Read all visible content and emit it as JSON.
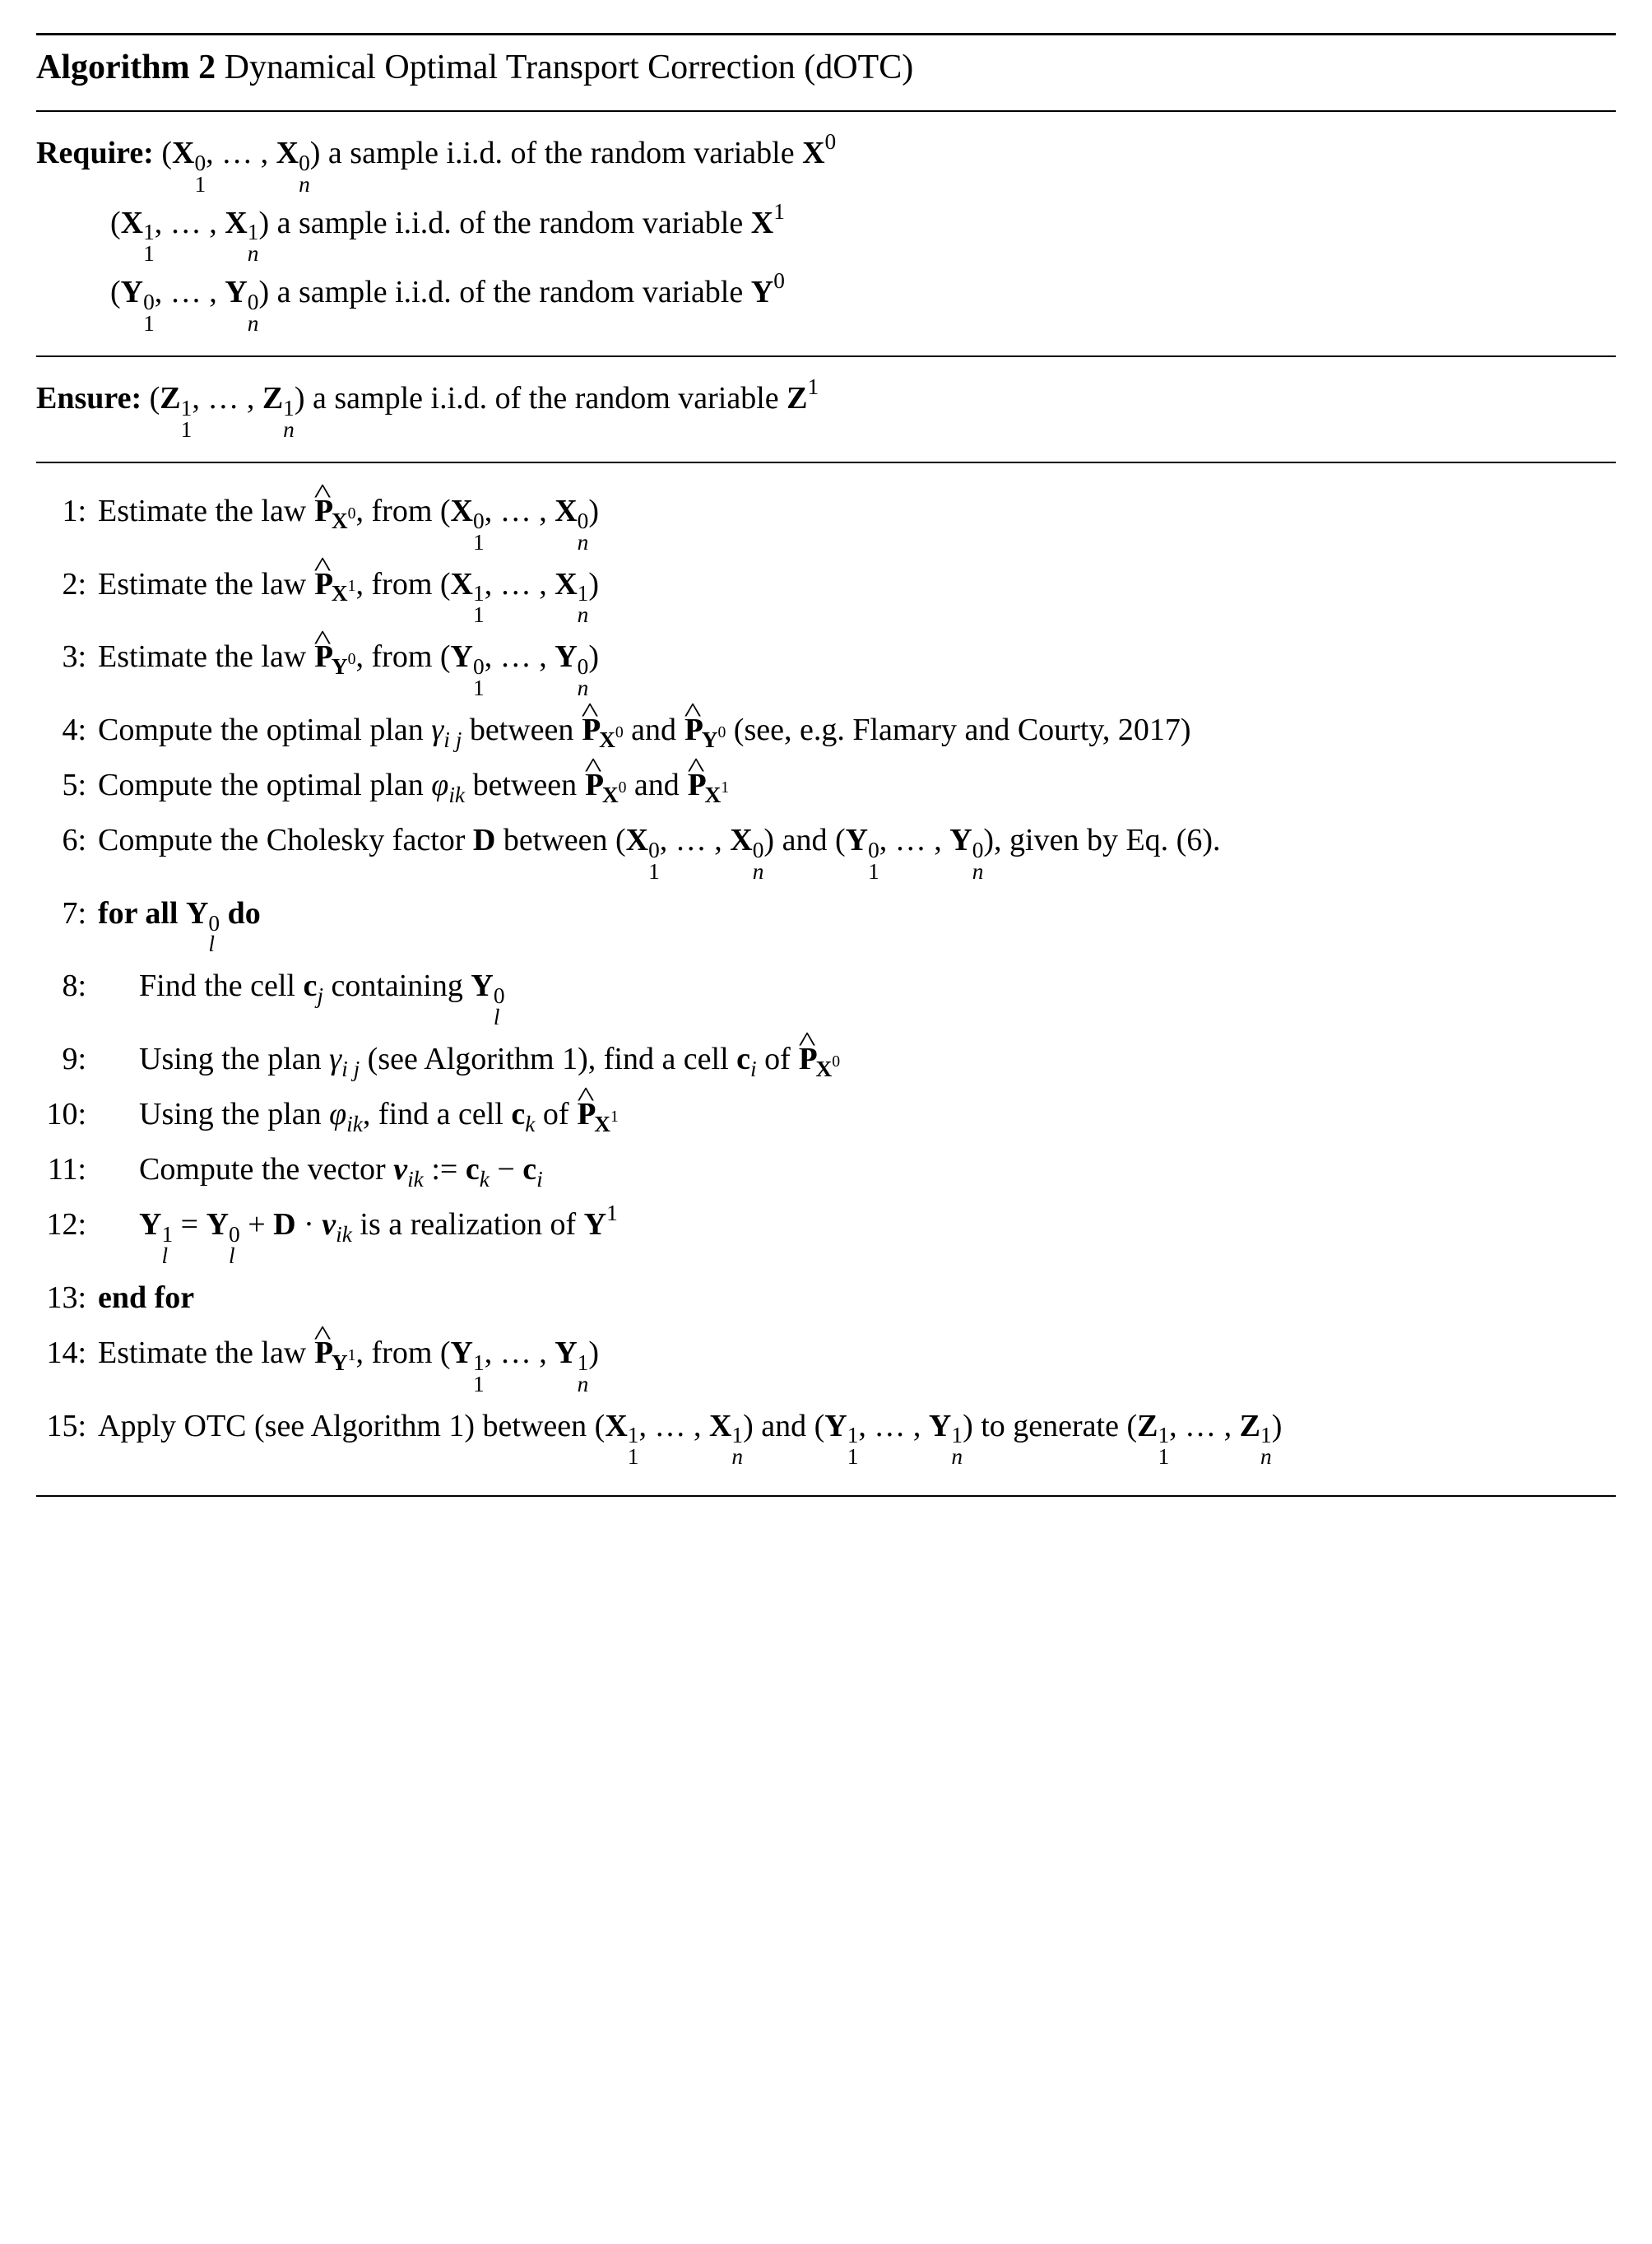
{
  "colors": {
    "background": "#ffffff",
    "text": "#000000",
    "rule": "#000000"
  },
  "typography": {
    "font_family": "Times New Roman",
    "base_fontsize_pt": 29,
    "title_fontsize_pt": 32,
    "line_height": 1.5
  },
  "algorithm": {
    "number": "2",
    "label": "Algorithm",
    "title": "Dynamical Optimal Transport Correction (dOTC)",
    "require_label": "Require:",
    "ensure_label": "Ensure:",
    "require_items": [
      "(𝐗₁⁰,…,𝐗ₙ⁰) a sample i.i.d. of the random variable 𝐗⁰",
      "(𝐗₁¹,…,𝐗ₙ¹) a sample i.i.d. of the random variable 𝐗¹",
      "(𝐘₁⁰,…,𝐘ₙ⁰) a sample i.i.d. of the random variable 𝐘⁰"
    ],
    "ensure_items": [
      "(𝐙₁¹,…,𝐙ₙ¹) a sample i.i.d. of the random variable 𝐙¹"
    ],
    "for_all_kw": "for all",
    "do_kw": "do",
    "end_for_kw": "end for",
    "steps": [
      {
        "n": "1:",
        "text": "Estimate the law ℙ̂_𝐗⁰, from (𝐗₁⁰,…,𝐗ₙ⁰)",
        "indent": 0,
        "bold": false
      },
      {
        "n": "2:",
        "text": "Estimate the law ℙ̂_𝐗¹, from (𝐗₁¹,…,𝐗ₙ¹)",
        "indent": 0,
        "bold": false
      },
      {
        "n": "3:",
        "text": "Estimate the law ℙ̂_𝐘⁰, from (𝐘₁⁰,…,𝐘ₙ⁰)",
        "indent": 0,
        "bold": false
      },
      {
        "n": "4:",
        "text": "Compute the optimal plan γᵢⱼ between ℙ̂_𝐗⁰ and ℙ̂_𝐘⁰ (see, e.g. Flamary and Courty, 2017)",
        "indent": 0,
        "bold": false
      },
      {
        "n": "5:",
        "text": "Compute the optimal plan φᵢₖ between ℙ̂_𝐗⁰ and ℙ̂_𝐗¹",
        "indent": 0,
        "bold": false
      },
      {
        "n": "6:",
        "text": "Compute the Cholesky factor 𝐃 between (𝐗₁⁰,…,𝐗ₙ⁰) and (𝐘₁⁰,…,𝐘ₙ⁰), given by Eq. (6).",
        "indent": 0,
        "bold": false
      },
      {
        "n": "7:",
        "text": "for all 𝐘ₗ⁰ do",
        "indent": 0,
        "bold": true
      },
      {
        "n": "8:",
        "text": "Find the cell 𝐜ⱼ containing 𝐘ₗ⁰",
        "indent": 1,
        "bold": false
      },
      {
        "n": "9:",
        "text": "Using the plan γᵢⱼ (see Algorithm 1), find a cell 𝐜ᵢ of ℙ̂_𝐗⁰",
        "indent": 1,
        "bold": false
      },
      {
        "n": "10:",
        "text": "Using the plan φᵢₖ, find a cell 𝐜ₖ of ℙ̂_𝐗¹",
        "indent": 1,
        "bold": false
      },
      {
        "n": "11:",
        "text": "Compute the vector 𝒗ᵢₖ := 𝐜ₖ − 𝐜ᵢ",
        "indent": 1,
        "bold": false
      },
      {
        "n": "12:",
        "text": "𝐘ₗ¹ = 𝐘ₗ⁰ + 𝐃 · 𝒗ᵢₖ is a realization of 𝐘¹",
        "indent": 1,
        "bold": false
      },
      {
        "n": "13:",
        "text": "end for",
        "indent": 0,
        "bold": true
      },
      {
        "n": "14:",
        "text": "Estimate the law ℙ̂_𝐘¹, from (𝐘₁¹,…,𝐘ₙ¹)",
        "indent": 0,
        "bold": false
      },
      {
        "n": "15:",
        "text": "Apply OTC (see Algorithm 1) between (𝐗₁¹,…,𝐗ₙ¹) and (𝐘₁¹,…,𝐘ₙ¹) to generate (𝐙₁¹,…,𝐙ₙ¹)",
        "indent": 0,
        "bold": false
      }
    ]
  }
}
